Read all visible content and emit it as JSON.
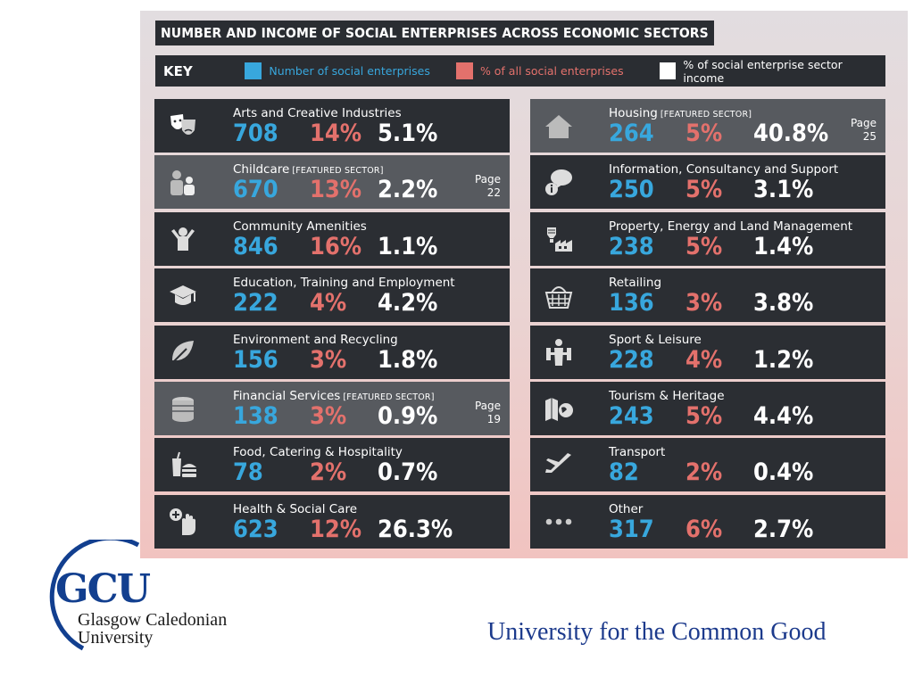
{
  "title": "NUMBER AND INCOME OF SOCIAL ENTERPRISES ACROSS ECONOMIC SECTORS",
  "key": {
    "label": "KEY",
    "items": [
      {
        "text": "Number of social enterprises",
        "color": "#38a7dd"
      },
      {
        "text": "% of all social enterprises",
        "color": "#e3716c"
      },
      {
        "text": "% of social enterprise sector income",
        "color": "#ffffff"
      }
    ]
  },
  "sectors_left": [
    {
      "name": "Arts and Creative Industries",
      "tag": "",
      "count": "708",
      "share": "14%",
      "income": "5.1%",
      "page_label": "",
      "page_num": "",
      "icon": "theatre-masks-icon"
    },
    {
      "name": "Childcare",
      "tag": "[FEATURED SECTOR]",
      "count": "670",
      "share": "13%",
      "income": "2.2%",
      "page_label": "Page",
      "page_num": "22",
      "icon": "parent-child-icon"
    },
    {
      "name": "Community Amenities",
      "tag": "",
      "count": "846",
      "share": "16%",
      "income": "1.1%",
      "page_label": "",
      "page_num": "",
      "icon": "person-arms-up-icon"
    },
    {
      "name": "Education, Training and Employment",
      "tag": "",
      "count": "222",
      "share": "4%",
      "income": "4.2%",
      "page_label": "",
      "page_num": "",
      "icon": "graduation-cap-icon"
    },
    {
      "name": "Environment and Recycling",
      "tag": "",
      "count": "156",
      "share": "3%",
      "income": "1.8%",
      "page_label": "",
      "page_num": "",
      "icon": "leaf-icon"
    },
    {
      "name": "Financial Services",
      "tag": "[FEATURED SECTOR]",
      "count": "138",
      "share": "3%",
      "income": "0.9%",
      "page_label": "Page",
      "page_num": "19",
      "icon": "coin-stack-icon"
    },
    {
      "name": "Food, Catering & Hospitality",
      "tag": "",
      "count": "78",
      "share": "2%",
      "income": "0.7%",
      "page_label": "",
      "page_num": "",
      "icon": "drink-burger-icon"
    },
    {
      "name": "Health & Social Care",
      "tag": "",
      "count": "623",
      "share": "12%",
      "income": "26.3%",
      "page_label": "",
      "page_num": "",
      "icon": "hand-plus-icon"
    }
  ],
  "sectors_right": [
    {
      "name": "Housing",
      "tag": "[FEATURED SECTOR]",
      "count": "264",
      "share": "5%",
      "income": "40.8%",
      "page_label": "Page",
      "page_num": "25",
      "icon": "house-icon"
    },
    {
      "name": "Information, Consultancy and Support",
      "tag": "",
      "count": "250",
      "share": "5%",
      "income": "3.1%",
      "page_label": "",
      "page_num": "",
      "icon": "info-speech-bubble-icon"
    },
    {
      "name": "Property, Energy and Land Management",
      "tag": "",
      "count": "238",
      "share": "5%",
      "income": "1.4%",
      "page_label": "",
      "page_num": "",
      "icon": "bulb-factory-icon"
    },
    {
      "name": "Retailing",
      "tag": "",
      "count": "136",
      "share": "3%",
      "income": "3.8%",
      "page_label": "",
      "page_num": "",
      "icon": "shopping-basket-icon"
    },
    {
      "name": "Sport & Leisure",
      "tag": "",
      "count": "228",
      "share": "4%",
      "income": "1.2%",
      "page_label": "",
      "page_num": "",
      "icon": "weightlifter-icon"
    },
    {
      "name": "Tourism & Heritage",
      "tag": "",
      "count": "243",
      "share": "5%",
      "income": "4.4%",
      "page_label": "",
      "page_num": "",
      "icon": "map-globe-icon"
    },
    {
      "name": "Transport",
      "tag": "",
      "count": "82",
      "share": "2%",
      "income": "0.4%",
      "page_label": "",
      "page_num": "",
      "icon": "airplane-icon"
    },
    {
      "name": "Other",
      "tag": "",
      "count": "317",
      "share": "6%",
      "income": "2.7%",
      "page_label": "",
      "page_num": "",
      "icon": "ellipsis-icon"
    }
  ],
  "logo": {
    "abbr": "GCU",
    "name_line1": "Glasgow Caledonian",
    "name_line2": "University"
  },
  "tagline": "University for the Common Good"
}
